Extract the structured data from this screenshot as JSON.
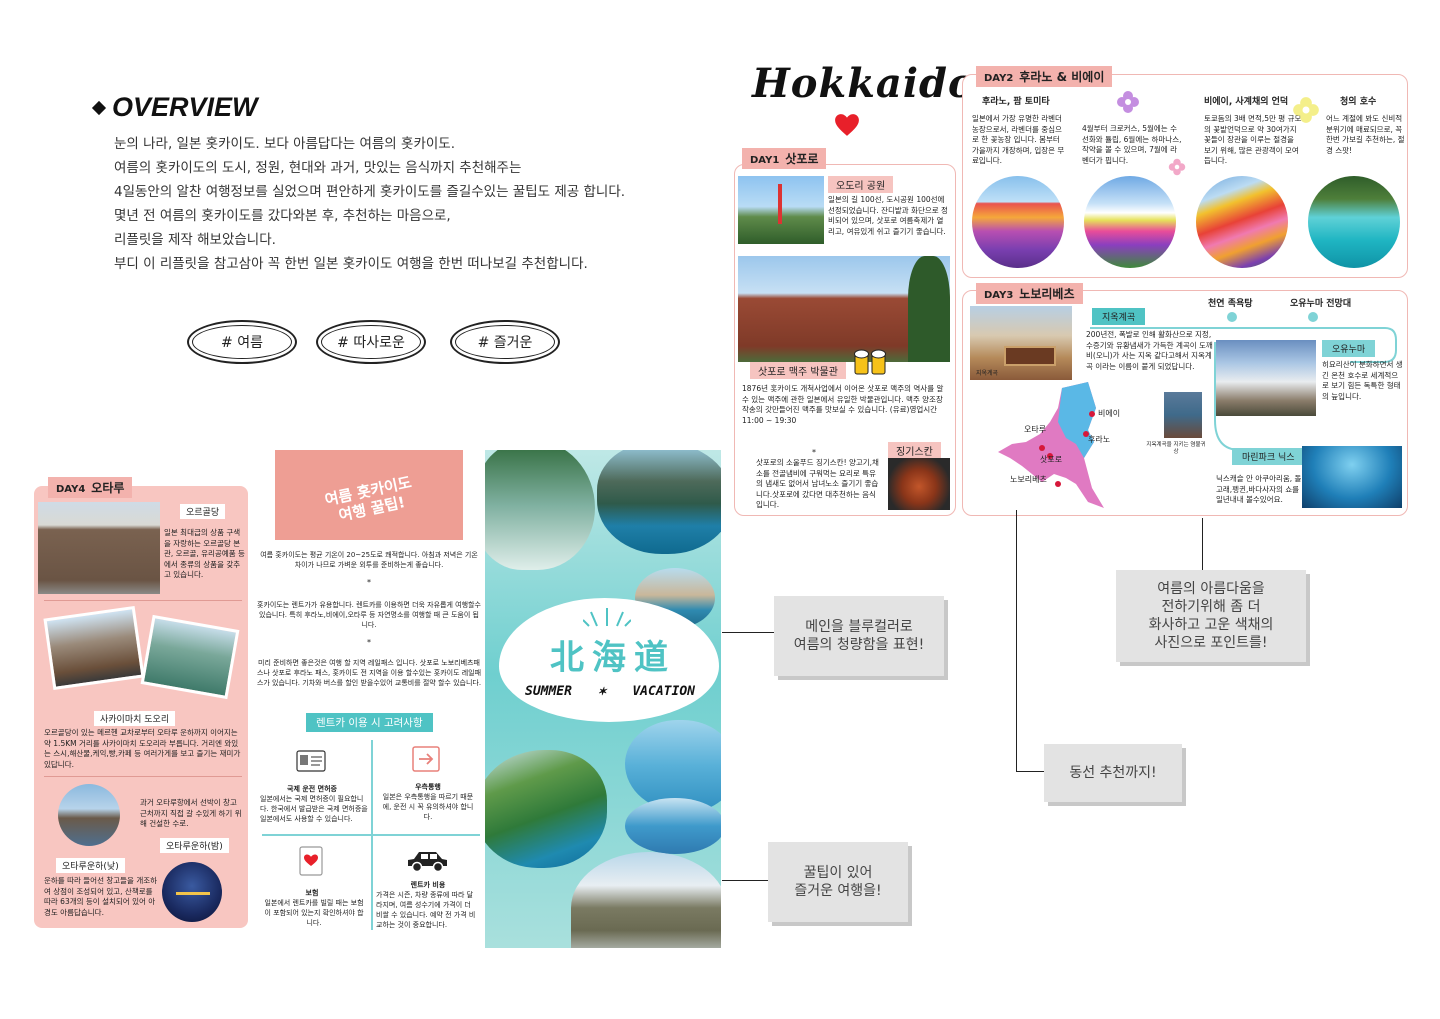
{
  "overview": {
    "title": "OVERVIEW",
    "lines": [
      "눈의 나라, 일본 홋카이도. 보다 아름답다는 여름의 홋카이도.",
      "여름의 홋카이도의 도시, 정원, 현대와 과거, 맛있는 음식까지 추천해주는",
      "4일동안의 알찬 여행정보를 실었으며 편안하게 홋카이도를 즐길수있는 꿀팁도 제공 합니다.",
      "몇년 전 여름의 홋카이도를 갔다와본 후, 추천하는 마음으로,",
      "리플릿을 제작 해보았습니다.",
      "부디 이 리플릿을 참고삼아 꼭 한번 일본 홋카이도 여행을 한번 떠나보길 추천합니다."
    ],
    "tags": [
      "# 여름",
      "# 따사로운",
      "# 즐거운"
    ]
  },
  "hokkaido": {
    "title": "Hokkaido"
  },
  "day1": {
    "tab_num": "DAY1",
    "tab_name": "삿포로",
    "odori_label": "오도리 공원",
    "odori_text": "일본의 길 100선, 도시공원 100선에 선정되었습니다. 잔디밭과 화단으로 정비되어 있으며, 삿포로 여름축제가 열리고, 여유있게 쉬고 즐기기 좋습니다.",
    "beer_label": "삿포로 맥주 박물관",
    "beer_text": "1876년 홋카이도 개척사업에서 이어온 삿포로 맥주의 역사를 알 수 있는 맥주에 관한 일본에서 유일한 박물관입니다. 맥주 양조장 작송의 갓만들어진 맥주를 맛보실 수 있습니다. (유료)영업시간 11:00 ~ 19:30",
    "jingis_label": "징기스칸",
    "jingis_text": "삿포로의 소울푸드 징기스칸! 양고기,채소를 전골냄비에 구워먹는 요리로 특유의 냄새도 없어서 남녀노소 즐기기 좋습니다.삿포로에 갔다면 대추천하는 음식입니다."
  },
  "day2": {
    "tab_num": "DAY2",
    "tab_name": "후라노 & 비에이",
    "items": [
      {
        "name": "후라노, 팜 토미타",
        "text": "일본에서 가장 유명한 라벤더 농장으로서, 라벤더를 중심으로 한 꽃농장 입니다. 봄부터 가을까지 개장하며, 입장은 무료입니다."
      },
      {
        "name": "",
        "text": "4월부터 크로커스, 5월에는 수선화와 튤립, 6월에는 하마나스, 작약을 볼 수 있으며, 7월에 라벤더가 핍니다."
      },
      {
        "name": "비에이, 사계채의 언덕",
        "text": "토쿄돔의 3배 면적,5만 평 규모의 꽃밭언덕으로 약 30여가지 꽃들이 장관을 이루는 절경을 보기 위해, 많은 관광객이 모여듭니다."
      },
      {
        "name": "청의 호수",
        "text": "어느 계절에 봐도 신비적 분위기에 매료되므로, 꼭 한번 가보길 추천하는, 절경 스팟!"
      }
    ]
  },
  "day3": {
    "tab_num": "DAY3",
    "tab_name": "노보리베츠",
    "jigoku_label": "지옥계곡",
    "jigoku_text": "200년전, 폭발로 인해 활화산으로 지정, 수증기와 유황냄새가 가득한 계곡이 도깨비(오니)가 사는 지옥 같다고해서 지옥계곡 이라는 이름이 붙게 되었답니다.",
    "falls": "천연 족욕탕",
    "observatory": "오유누마 전망대",
    "oyunuma_label": "오유누마",
    "oyunuma_text": "히요리산이 분화하면서 생긴 온천 호수로 세계적으로 보기 힘든 독특한 형태의 늪입니다.",
    "marine_label": "마린파크 닉스",
    "marine_text": "닉스캐슬 안 아쿠아리움, 돌고래,펭귄,바다사자의 쇼를 일년내내 볼수있어요.",
    "map_labels": [
      "비에이",
      "후라노",
      "오타루",
      "삿포로",
      "노보리베츠"
    ],
    "photo_caption": "지옥계곡을 지키는 염불귀상",
    "sign_caption": "지옥계곡"
  },
  "day4": {
    "tab_num": "DAY4",
    "tab_name": "오타루",
    "orgel_label": "오르골당",
    "orgel_text": "일본 최대급의 상품 구색을 자랑하는 오르골당 본관, 오르골, 유리공예품 등에서 종류의 상품을 갖추고 있습니다.",
    "sakai_label": "사카이마치 도오리",
    "sakai_text": "오르골당이 있는 메르헨 교차로부터 오타루 운하까지 이어지는 약 1.5KM 거리를 사카이마치 도오리라 부릅니다. 거리엔 와있는 스시,해산물,케익,빵,카페 등 여러가게를 보고 즐기는 재미가 있답니다.",
    "canal_text": "과거 오타루항에서 선박이 창고 근처까지 직접 갈 수있게 하기 위해 건설한 수로.",
    "canal_night_label": "오타루운하(밤)",
    "canal_day_label": "오타루운하(낮)",
    "canal_day_text": "운하를 따라 들어선 창고들을 개조하여 상점이 조성되어 있고, 산책로를 따라 63개의 등이 설치되어 있어 아경도 아름답습니다."
  },
  "tips": {
    "title_1": "여름 홋카이도",
    "title_2": "여행 꿀팁!",
    "p1": "여름 홋카이도는 평균 기온이 20~25도로 쾌적합니다. 아침과 저녁은 기온 차이가 나므로 가벼운 외투를 준비하는게 좋습니다.",
    "p2": "홋카이도는 렌트가가 유용합니다. 렌트카를 이용하면 더욱 자유롭게 여행할수 있습니다. 특히 후라노,비에이,오타루 등 자연명소를 여행할 때 큰 도움이 됩니다.",
    "p3": "미리 준비하면 좋은것은 여행 할 지역 레일패스 입니다. 삿포로 노보리베츠패스나 삿포로 후라노 패스, 홋카이도 전 지역을 이용 할수있는 홋카이도 레일패스가 있습니다. 기차와 버스를 할인 받을수있어 교통비를 절약 할수 있습니다.",
    "rent_title": "렌트카 이용 시 고려사항",
    "cells": [
      {
        "title": "국제 운전 면허증",
        "text": "일본에서는 국제 면허증이 필요합니다. 한국에서 발급받은 국제 면허증을 일본에서도 사용할 수 있습니다."
      },
      {
        "title": "우측통행",
        "text": "일본은 우측통행을 따르기 때문에, 운전 시 꼭 유의하셔야 합니다."
      },
      {
        "title": "보험",
        "text": "일본에서 렌트카를 빌릴 때는 보험이 포함되어 있는지 확인하셔야 합니다."
      },
      {
        "title": "렌트카 비용",
        "text": "가격은 시즌, 차량 종류에 따라 달라지며, 여름 성수기에 가격이 더 비쌀 수 있습니다. 예약 전 가격 비교하는 것이 중요합니다."
      }
    ]
  },
  "flyer": {
    "kanji": "北海道",
    "subtitle_left": "SUMMER",
    "subtitle_star": "✶",
    "subtitle_right": "VACATION"
  },
  "notes": {
    "blue": "메인을 블루컬러로\n여름의 청량함을 표현!",
    "season": "여름의 아름다움을\n전하기위해 좀 더\n화사하고 고운 색채의\n사진으로 포인트를!",
    "route": "동선 추천까지!",
    "tips": "꿀팁이 있어\n즐거운 여행을!"
  },
  "colors": {
    "pink": "#f3b2ad",
    "teal": "#4fc3c4",
    "note_bg": "#e3e3e3",
    "heart": "#e8202a"
  }
}
